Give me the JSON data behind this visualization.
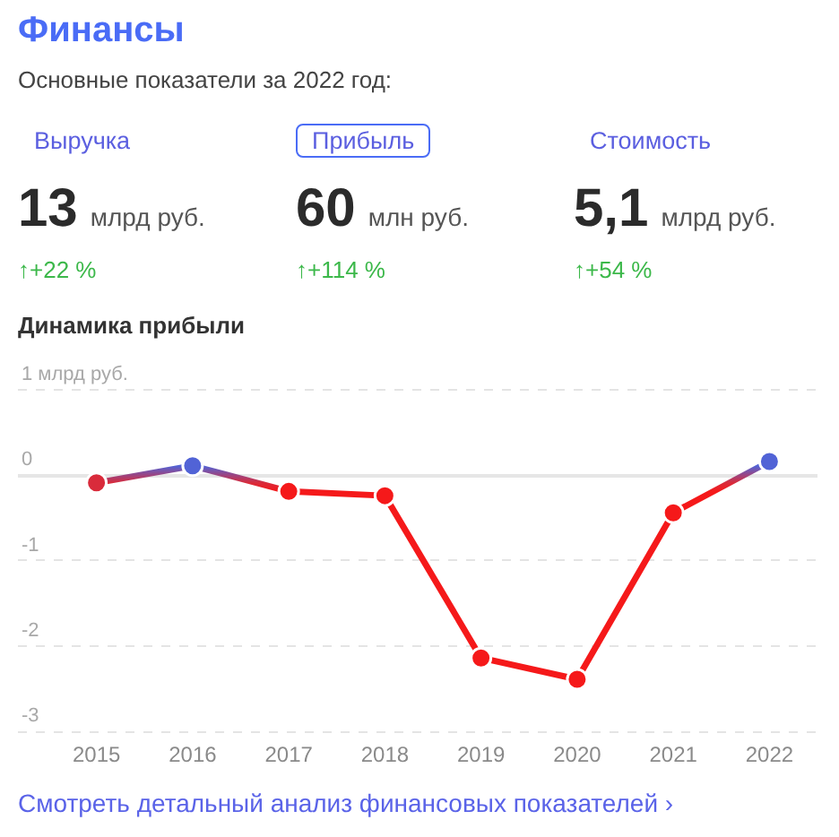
{
  "chart_data": [
    {
      "type": "other",
      "title": "Финансы",
      "subtitle": "Основные показатели за 2022 год:",
      "annotations": [
        "Выручка",
        "13",
        "млрд руб.",
        "↑+22 %",
        "Прибыль",
        "60",
        "млн руб.",
        "↑+114 %",
        "Стоимость",
        "5,1",
        "млрд руб.",
        "↑+54 %"
      ]
    },
    {
      "type": "line",
      "title": "Динамика прибыли",
      "categories": [
        "2015",
        "2016",
        "2017",
        "2018",
        "2019",
        "2020",
        "2021",
        "2022"
      ],
      "series": [
        {
          "values": [
            -0.1,
            0.1,
            -0.2,
            -0.25,
            -2.15,
            -2.4,
            -0.45,
            0.15
          ],
          "colors": [
            "#d92b3b",
            "#5163d6",
            "#f5191a",
            "#f5191a",
            "#f5191a",
            "#f5191a",
            "#f5191a",
            "#5163d6"
          ]
        }
      ],
      "ylim": [
        -3,
        1
      ],
      "yticks": [
        {
          "value": 1,
          "label": "1 млрд руб."
        },
        0,
        -1,
        -2,
        -3
      ],
      "grid": "y",
      "marker": "circle",
      "line_style": "solid",
      "annotations": [
        "Смотреть детальный анализ финансовых показателей ›"
      ]
    }
  ]
}
